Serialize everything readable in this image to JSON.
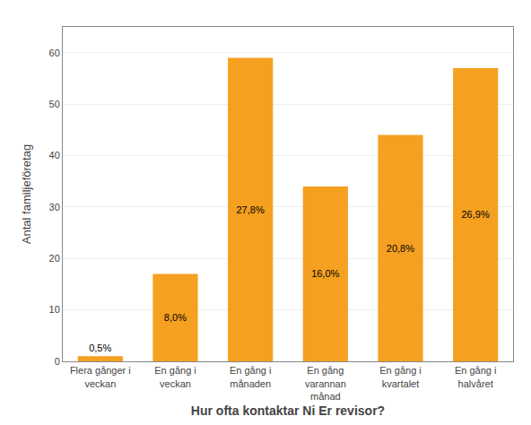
{
  "chart_data": {
    "type": "bar",
    "categories": [
      "Flera gånger i\nveckan",
      "En gång i\nveckan",
      "En gång i\nmånaden",
      "En gång\nvarannan\nmånad",
      "En gång i\nkvartalet",
      "En gång i\nhalvåret"
    ],
    "values": [
      1,
      17,
      59,
      34,
      44,
      57
    ],
    "value_labels": [
      "0,5%",
      "8,0%",
      "27,8%",
      "16,0%",
      "20,8%",
      "26,9%"
    ],
    "data_labels": true,
    "color": "#F5A020",
    "xlabel": "Hur ofta kontaktar Ni Er revisor?",
    "ylabel": "Antal familjeföretag",
    "ylim": [
      0,
      65
    ],
    "yticks": [
      0,
      10,
      20,
      30,
      40,
      50,
      60
    ],
    "grid": true
  }
}
